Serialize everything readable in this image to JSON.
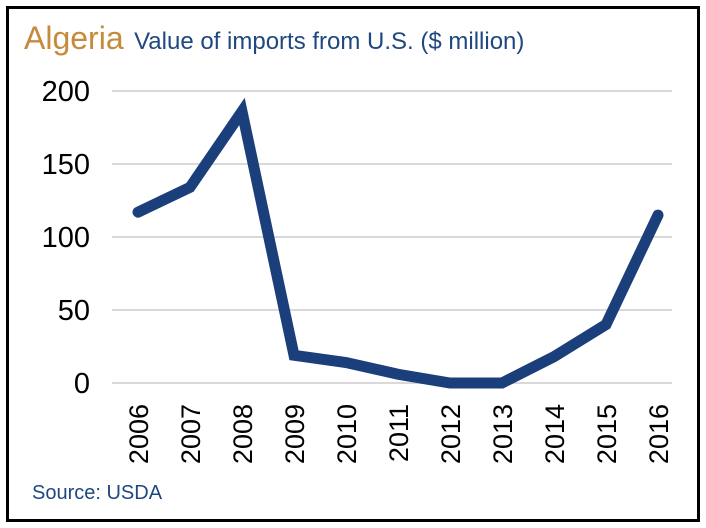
{
  "colors": {
    "country": "#c58a3a",
    "subtitle": "#1f4780",
    "line": "#1a3f7a",
    "grid": "#d9d9d9",
    "border": "#000000"
  },
  "header": {
    "country": "Algeria",
    "subtitle": "Value of imports from U.S. ($ million)"
  },
  "footer": {
    "source": "Source: USDA"
  },
  "chart_data": {
    "type": "line",
    "title": "Algeria",
    "subtitle": "Value of imports from U.S. ($ million)",
    "categories": [
      "2006",
      "2007",
      "2008",
      "2009",
      "2010",
      "2011",
      "2012",
      "2013",
      "2014",
      "2015",
      "2016"
    ],
    "series": [
      {
        "values": [
          117,
          134,
          186,
          19,
          14,
          6,
          0,
          0,
          18,
          40,
          115
        ]
      }
    ],
    "ylim": [
      0,
      200
    ],
    "yticks": [
      0,
      50,
      100,
      150,
      200
    ],
    "grid": true,
    "legend": "none",
    "source": "Source: USDA"
  }
}
